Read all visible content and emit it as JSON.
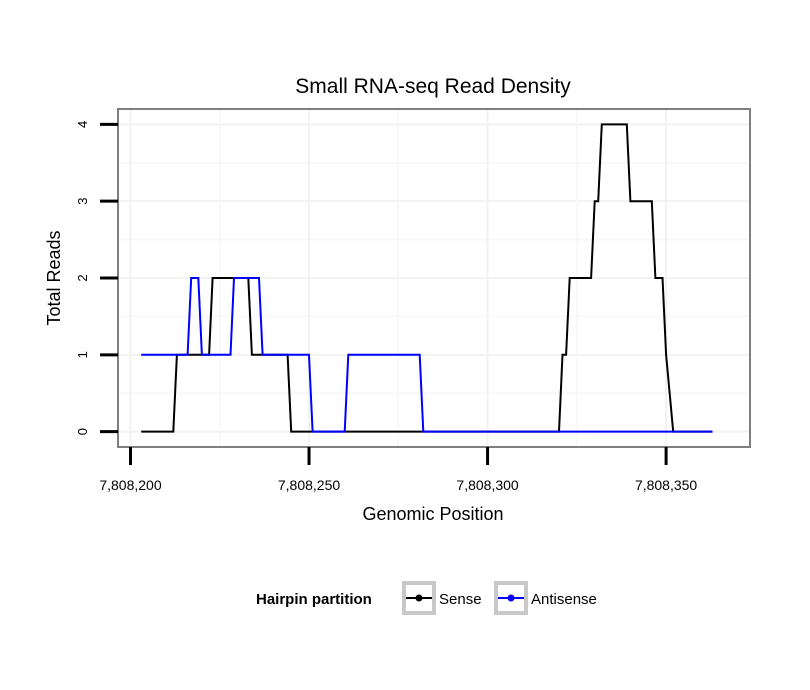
{
  "chart_data": {
    "type": "line",
    "title": "Small RNA-seq Read Density",
    "xlabel": "Genomic Position",
    "ylabel": "Total Reads",
    "xlim": [
      7808196.5,
      7808373.5
    ],
    "ylim": [
      -0.2,
      4.2
    ],
    "x_ticks": [
      7808200,
      7808250,
      7808300,
      7808350
    ],
    "x_tick_labels": [
      "7,808,200",
      "7,808,250",
      "7,808,300",
      "7,808,350"
    ],
    "y_ticks": [
      0,
      1,
      2,
      3,
      4
    ],
    "y_tick_labels": [
      "0",
      "1",
      "2",
      "3",
      "4"
    ],
    "grid": true,
    "legend": {
      "title": "Hairpin partition",
      "position": "bottom",
      "entries": [
        "Sense",
        "Antisense"
      ]
    },
    "series": [
      {
        "name": "Sense",
        "color": "#000000",
        "x": [
          7808203,
          7808212,
          7808213,
          7808222,
          7808223,
          7808230,
          7808231,
          7808233,
          7808234,
          7808244,
          7808245,
          7808320,
          7808321,
          7808322,
          7808323,
          7808329,
          7808330,
          7808331,
          7808332,
          7808339,
          7808340,
          7808346,
          7808347,
          7808349,
          7808350,
          7808352,
          7808363
        ],
        "values": [
          0,
          0,
          1,
          1,
          2,
          2,
          2,
          2,
          1,
          1,
          0,
          0,
          1,
          1,
          2,
          2,
          3,
          3,
          4,
          4,
          3,
          3,
          2,
          2,
          1,
          0,
          0
        ]
      },
      {
        "name": "Antisense",
        "color": "#0000ff",
        "x": [
          7808203,
          7808216,
          7808217,
          7808219,
          7808220,
          7808228,
          7808229,
          7808236,
          7808237,
          7808250,
          7808251,
          7808260,
          7808261,
          7808281,
          7808282,
          7808363
        ],
        "values": [
          1,
          1,
          2,
          2,
          1,
          1,
          2,
          2,
          1,
          1,
          0,
          0,
          1,
          1,
          0,
          0
        ]
      }
    ]
  }
}
